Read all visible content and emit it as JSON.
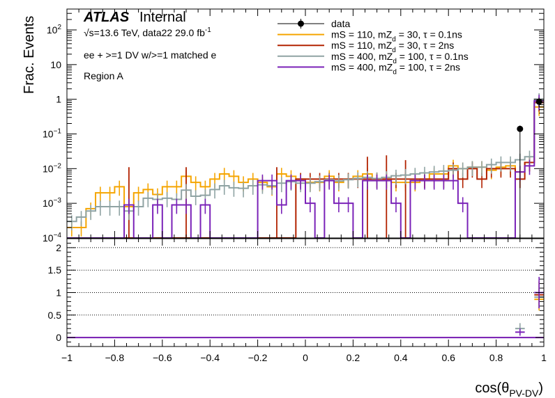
{
  "header": {
    "experiment": "ATLAS",
    "status": "Internal",
    "energy_prefix": "√s=13.6 TeV, data22 29.0 fb",
    "energy_sup": "-1",
    "selection": "ee + >=1 DV w/>=1 matched e",
    "region": "Region A"
  },
  "colors": {
    "data": "#000000",
    "orange": "#f5a500",
    "red": "#b22200",
    "grey": "#8fa3a3",
    "purple": "#7a22b8"
  },
  "chart_data": [
    {
      "type": "line",
      "description_of_type": "stepped histogram",
      "xlabel_main": "cos(θ",
      "xlabel_sub": "PV-DV",
      "xlabel_close": ")",
      "ylabel": "Frac. Events",
      "xlim": [
        -1,
        1
      ],
      "ylim": [
        0.0001,
        400
      ],
      "yscale": "log",
      "x_ticks": [
        "−1",
        "−0.8",
        "−0.6",
        "−0.4",
        "−0.2",
        "0",
        "0.2",
        "0.4",
        "0.6",
        "0.8",
        "1"
      ],
      "y_ticks": [
        {
          "base": "10",
          "exp": "2"
        },
        {
          "base": "10",
          "exp": ""
        },
        {
          "base": "1",
          "exp": ""
        },
        {
          "base": "10",
          "exp": "−1"
        },
        {
          "base": "10",
          "exp": "−2"
        },
        {
          "base": "10",
          "exp": "−3"
        },
        {
          "base": "10",
          "exp": "−4"
        }
      ],
      "bin_edges_start": -1,
      "bin_width": 0.04,
      "legend": {
        "placement": "top-right",
        "entries": [
          {
            "label": "data",
            "style": "marker"
          },
          {
            "pre": "mS = 110, mZ",
            "sub": "d",
            "post": " = 30, τ = 0.1ns",
            "style": "orange"
          },
          {
            "pre": "mS = 110, mZ",
            "sub": "d",
            "post": " = 30, τ = 2ns",
            "style": "red"
          },
          {
            "pre": "mS = 400, mZ",
            "sub": "d",
            "post": " = 100, τ = 0.1ns",
            "style": "grey"
          },
          {
            "pre": "mS = 400, mZ",
            "sub": "d",
            "post": " = 100, τ = 2ns",
            "style": "purple"
          }
        ]
      },
      "data_points": [
        {
          "x": 0.9,
          "y": 0.14,
          "ylow": 0.0001
        },
        {
          "x": 0.98,
          "y": 0.85,
          "ylow": 0.6,
          "yhigh": 1.1
        }
      ],
      "series": [
        {
          "style": "orange",
          "values": [
            0.0002,
            0.0002,
            0.0007,
            0.002,
            0.002,
            0.003,
            0.0008,
            0.002,
            0.0025,
            0.0018,
            0.003,
            0.003,
            0.006,
            0.004,
            0.003,
            0.005,
            0.007,
            0.006,
            0.004,
            0.005,
            0.004,
            0.003,
            0.007,
            0.006,
            0.005,
            0.004,
            0.004,
            0.006,
            0.004,
            0.005,
            0.006,
            0.007,
            0.005,
            0.005,
            0.004,
            0.004,
            0.004,
            0.005,
            0.007,
            0.007,
            0.012,
            0.01,
            0.011,
            0.011,
            0.009,
            0.011,
            0.012,
            0.008,
            0.015,
            0.6
          ]
        },
        {
          "style": "red",
          "values": [
            0.0001,
            0.0001,
            0.0001,
            0.0001,
            0.0001,
            0.0001,
            0.0001,
            0.0001,
            0.0001,
            0.0001,
            0.0001,
            0.0001,
            0.0001,
            0.0001,
            0.0001,
            0.0001,
            0.0001,
            0.0001,
            0.0001,
            0.0001,
            0.0001,
            0.0001,
            0.0001,
            0.0001,
            0.005,
            0.005,
            0.005,
            0.005,
            0.005,
            0.005,
            0.005,
            0.005,
            0.005,
            0.005,
            0.005,
            0.005,
            0.005,
            0.005,
            0.005,
            0.005,
            0.01,
            0.005,
            0.01,
            0.005,
            0.01,
            0.01,
            0.01,
            0.005,
            0.015,
            0.8
          ],
          "spikes": [
            {
              "x": -0.74,
              "y": 0.005
            },
            {
              "x": -0.5,
              "y": 0.005
            },
            {
              "x": -0.12,
              "y": 0.005
            },
            {
              "x": 0.26,
              "y": 0.01
            },
            {
              "x": 0.34,
              "y": 0.011
            },
            {
              "x": 0.42,
              "y": 0.008
            }
          ]
        },
        {
          "style": "grey",
          "values": [
            0.0003,
            0.0004,
            0.0006,
            0.0008,
            0.0008,
            0.0008,
            0.0006,
            0.0008,
            0.0014,
            0.0013,
            0.0014,
            0.0013,
            0.0024,
            0.0016,
            0.0017,
            0.0025,
            0.0032,
            0.0028,
            0.0027,
            0.0032,
            0.0034,
            0.0032,
            0.0038,
            0.0042,
            0.0038,
            0.0038,
            0.0042,
            0.0048,
            0.0044,
            0.0048,
            0.0052,
            0.0056,
            0.0052,
            0.0056,
            0.0062,
            0.0065,
            0.007,
            0.0075,
            0.008,
            0.0085,
            0.009,
            0.01,
            0.011,
            0.011,
            0.013,
            0.015,
            0.015,
            0.018,
            0.022,
            1.0
          ]
        },
        {
          "style": "purple",
          "values": [
            0.0001,
            0.0001,
            0.0001,
            0.0001,
            0.0001,
            0.0001,
            0.0009,
            0.0001,
            0.0001,
            0.0009,
            0.0001,
            0.0009,
            0.0009,
            0.0001,
            0.0009,
            0.0001,
            0.0001,
            0.0001,
            0.0001,
            0.0001,
            0.0045,
            0.0045,
            0.0009,
            0.0045,
            0.0045,
            0.001,
            0.0001,
            0.0045,
            0.001,
            0.001,
            0.0001,
            0.0045,
            0.0045,
            0.0045,
            0.001,
            0.0001,
            0.0045,
            0.0045,
            0.0045,
            0.0045,
            0.0045,
            0.001,
            0.0001,
            0.0001,
            0.0001,
            0.0001,
            0.0001,
            0.008,
            0.012,
            0.9
          ]
        }
      ]
    },
    {
      "type": "line",
      "description_of_type": "ratio panel",
      "ylim": [
        -0.2,
        2.2
      ],
      "y_ticks": [
        "0",
        "0.5",
        "1",
        "1.5",
        "2"
      ],
      "gridlines_y": [
        0.5,
        1,
        1.5,
        2
      ],
      "grid": "dotted horizontal",
      "ratio_points": [
        {
          "x": 0.9,
          "series": "grey",
          "y": 0.2,
          "err": 0.12
        },
        {
          "x": 0.9,
          "series": "purple",
          "y": 0.12,
          "err": 0.08
        },
        {
          "x": 0.98,
          "series": "orange",
          "y": 0.85,
          "err": 0.25
        },
        {
          "x": 0.98,
          "series": "red",
          "y": 0.95,
          "err": 0.3
        },
        {
          "x": 0.98,
          "series": "grey",
          "y": 0.9,
          "err": 0.25
        },
        {
          "x": 0.98,
          "series": "purple",
          "y": 1.0,
          "err": 0.35
        }
      ]
    }
  ]
}
